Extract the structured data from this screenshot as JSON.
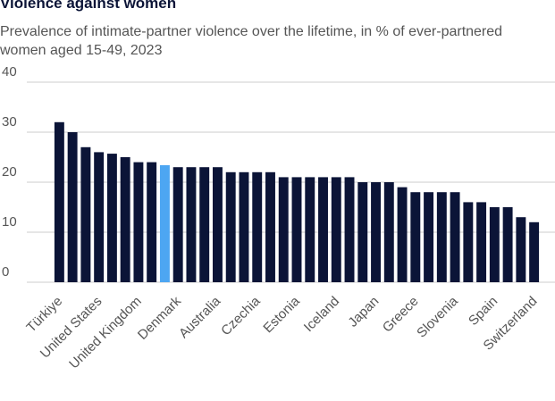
{
  "chart_data": {
    "type": "bar",
    "title": "Violence against women",
    "subtitle": "Prevalence of intimate-partner violence over the lifetime, in % of ever-partnered women aged 15-49, 2023",
    "categories": [
      "Türkiye",
      null,
      null,
      "United States",
      null,
      null,
      "United Kingdom",
      null,
      null,
      "Denmark",
      null,
      null,
      "Australia",
      null,
      null,
      "Czechia",
      null,
      null,
      "Estonia",
      null,
      null,
      "Iceland",
      null,
      null,
      "Japan",
      null,
      null,
      "Greece",
      null,
      null,
      "Slovenia",
      null,
      null,
      "Spain",
      null,
      null,
      "Switzerland"
    ],
    "values": [
      32,
      30,
      27,
      26,
      25.7,
      25,
      24,
      24,
      23.4,
      23,
      23,
      23,
      23,
      22,
      22,
      22,
      22,
      21,
      21,
      21,
      21,
      21,
      21,
      20,
      20,
      20,
      19,
      18,
      18,
      18,
      18,
      16,
      16,
      15,
      15,
      13,
      12
    ],
    "colors": [
      "#0b1437",
      "#0b1437",
      "#0b1437",
      "#0b1437",
      "#0b1437",
      "#0b1437",
      "#0b1437",
      "#0b1437",
      "#4da6f2",
      "#0b1437",
      "#0b1437",
      "#0b1437",
      "#0b1437",
      "#0b1437",
      "#0b1437",
      "#0b1437",
      "#0b1437",
      "#0b1437",
      "#0b1437",
      "#0b1437",
      "#0b1437",
      "#0b1437",
      "#0b1437",
      "#0b1437",
      "#0b1437",
      "#0b1437",
      "#0b1437",
      "#0b1437",
      "#0b1437",
      "#0b1437",
      "#0b1437",
      "#0b1437",
      "#0b1437",
      "#0b1437",
      "#0b1437",
      "#0b1437",
      "#0b1437"
    ],
    "ylim": [
      0,
      40
    ],
    "yticks": [
      0,
      10,
      20,
      30,
      40
    ],
    "grid": true
  }
}
